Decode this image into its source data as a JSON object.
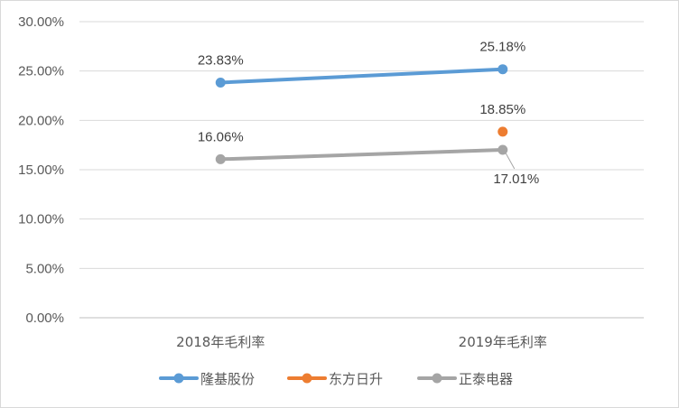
{
  "chart_data": {
    "type": "line",
    "title": "",
    "xlabel": "",
    "ylabel": "",
    "categories": [
      "2018年毛利率",
      "2019年毛利率"
    ],
    "ylim": [
      0,
      30
    ],
    "yticks": [
      0,
      5,
      10,
      15,
      20,
      25,
      30
    ],
    "ytick_labels": [
      "0.00%",
      "5.00%",
      "10.00%",
      "15.00%",
      "20.00%",
      "25.00%",
      "30.00%"
    ],
    "grid": true,
    "legend_position": "bottom",
    "series": [
      {
        "name": "隆基股份",
        "color": "#5B9BD5",
        "values": [
          23.83,
          25.18
        ],
        "labels": [
          "23.83%",
          "25.18%"
        ]
      },
      {
        "name": "东方日升",
        "color": "#ED7D31",
        "values": [
          null,
          18.85
        ],
        "labels": [
          null,
          "18.85%"
        ]
      },
      {
        "name": "正泰电器",
        "color": "#A5A5A5",
        "values": [
          16.06,
          17.01
        ],
        "labels": [
          "16.06%",
          "17.01%"
        ]
      }
    ]
  }
}
